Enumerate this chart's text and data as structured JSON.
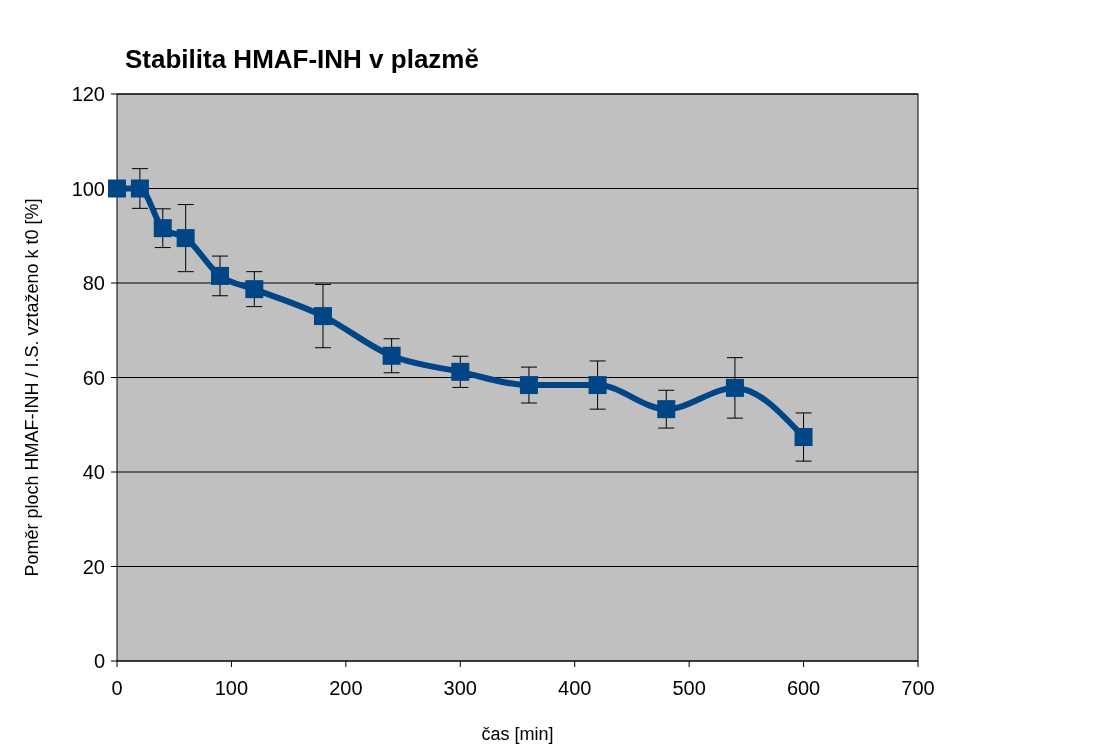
{
  "chart_data": {
    "type": "line",
    "title": "Stabilita HMAF-INH v plazmě",
    "xlabel": "čas [min]",
    "ylabel": "Poměr ploch HMAF-INH / I.S. vztaženo k t0 [%]",
    "x": [
      0,
      20,
      40,
      60,
      90,
      120,
      180,
      240,
      300,
      360,
      420,
      480,
      540,
      600
    ],
    "series": [
      {
        "color": "#004586",
        "values": [
          100,
          100,
          91.6,
          89.5,
          81.5,
          78.7,
          73.0,
          64.6,
          61.2,
          58.4,
          58.4,
          53.3,
          57.8,
          47.4
        ],
        "errors": [
          null,
          4.2,
          4.1,
          7.1,
          4.2,
          3.7,
          6.7,
          3.6,
          3.3,
          3.8,
          5.1,
          4.0,
          6.4,
          5.1
        ]
      }
    ],
    "xlim": [
      0,
      700
    ],
    "xticks": [
      0,
      100,
      200,
      300,
      400,
      500,
      600,
      700
    ],
    "ylim": [
      0,
      120
    ],
    "yticks": [
      0,
      20,
      40,
      60,
      80,
      100,
      120
    ],
    "grid": "y",
    "marker": "square",
    "line_style": "solid"
  }
}
